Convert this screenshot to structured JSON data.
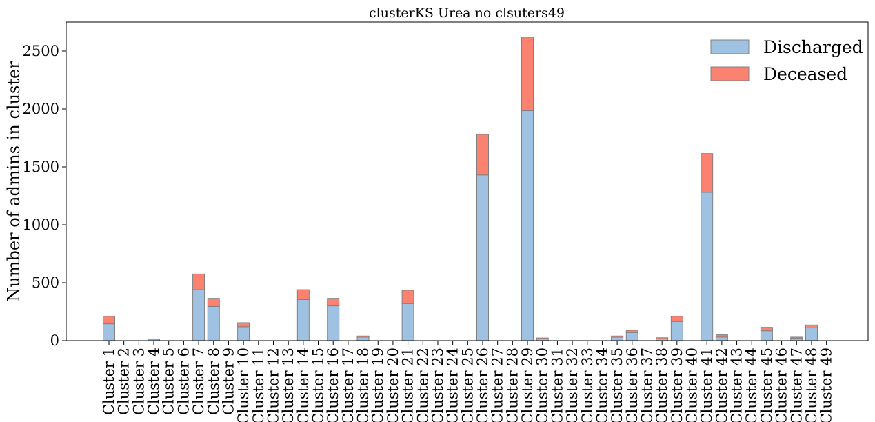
{
  "colors": {
    "discharged": "#9fc2e2",
    "deceased": "#fb8270",
    "bar_edge": "#808080"
  },
  "chart_data": {
    "type": "bar",
    "stacked": true,
    "title": "clusterKS Urea no clsuters49",
    "xlabel": "",
    "ylabel": "Number of admins in cluster",
    "ylim": [
      0,
      2750
    ],
    "yticks": [
      0,
      500,
      1000,
      1500,
      2000,
      2500
    ],
    "grid": false,
    "legend_position": "top-right",
    "categories": [
      "Cluster 1",
      "Cluster 2",
      "Cluster 3",
      "Cluster 4",
      "Cluster 5",
      "Cluster 6",
      "Cluster 7",
      "Cluster 8",
      "Cluster 9",
      "Cluster 10",
      "Cluster 11",
      "Cluster 12",
      "Cluster 13",
      "Cluster 14",
      "Cluster 15",
      "Cluster 16",
      "Cluster 17",
      "Cluster 18",
      "Cluster 19",
      "Cluster 20",
      "Cluster 21",
      "Cluster 22",
      "Cluster 23",
      "Cluster 24",
      "Cluster 25",
      "Cluster 26",
      "Cluster 27",
      "Cluster 28",
      "Cluster 29",
      "Cluster 30",
      "Cluster 31",
      "Cluster 32",
      "Cluster 33",
      "Cluster 34",
      "Cluster 35",
      "Cluster 36",
      "Cluster 37",
      "Cluster 38",
      "Cluster 39",
      "Cluster 40",
      "Cluster 41",
      "Cluster 42",
      "Cluster 43",
      "Cluster 44",
      "Cluster 45",
      "Cluster 46",
      "Cluster 47",
      "Cluster 48",
      "Cluster 49"
    ],
    "series": [
      {
        "name": "Discharged",
        "values": [
          145,
          0,
          0,
          12,
          0,
          0,
          440,
          295,
          0,
          120,
          0,
          0,
          0,
          355,
          0,
          300,
          0,
          30,
          0,
          0,
          320,
          0,
          0,
          0,
          0,
          1430,
          0,
          0,
          1985,
          15,
          0,
          0,
          0,
          0,
          30,
          70,
          0,
          15,
          165,
          0,
          1280,
          30,
          0,
          0,
          85,
          0,
          20,
          110,
          0
        ]
      },
      {
        "name": "Deceased",
        "values": [
          65,
          0,
          0,
          3,
          0,
          0,
          135,
          70,
          0,
          35,
          0,
          0,
          0,
          85,
          0,
          65,
          0,
          10,
          0,
          0,
          115,
          0,
          0,
          0,
          0,
          350,
          0,
          0,
          635,
          8,
          0,
          0,
          0,
          0,
          10,
          20,
          0,
          10,
          45,
          0,
          335,
          20,
          0,
          0,
          30,
          0,
          10,
          25,
          0
        ]
      }
    ]
  }
}
